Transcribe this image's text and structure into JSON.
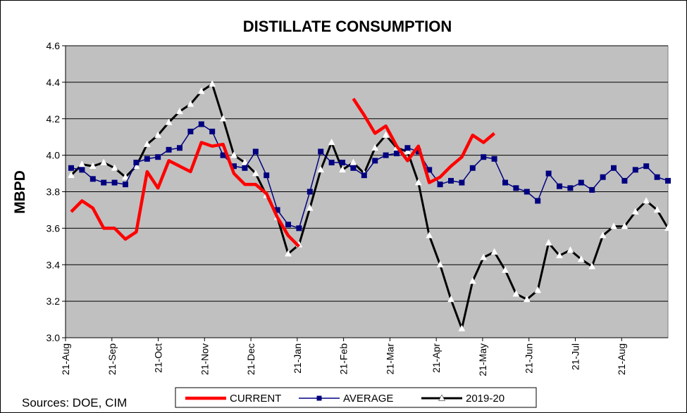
{
  "chart_data": {
    "type": "line",
    "title": "DISTILLATE CONSUMPTION",
    "ylabel": "MBPD",
    "xlabel": "",
    "ylim": [
      3.0,
      4.6
    ],
    "y_ticks": [
      "3.0",
      "3.2",
      "3.4",
      "3.6",
      "3.8",
      "4.0",
      "4.2",
      "4.4",
      "4.6"
    ],
    "x_ticks": [
      "21-Aug",
      "21-Sep",
      "21-Oct",
      "21-Nov",
      "21-Dec",
      "21-Jan",
      "21-Feb",
      "21-Mar",
      "21-Apr",
      "21-May",
      "21-Jun",
      "21-Jul",
      "21-Aug"
    ],
    "grid": true,
    "plot_background": "#c0c0c0",
    "legend_position": "bottom",
    "series": [
      {
        "name": "CURRENT",
        "color": "#ff0000",
        "marker": "none",
        "values": [
          3.69,
          3.75,
          3.71,
          3.6,
          3.6,
          3.54,
          3.58,
          3.91,
          3.82,
          3.97,
          3.94,
          3.91,
          4.07,
          4.05,
          4.06,
          3.9,
          3.84,
          3.84,
          3.79,
          3.66,
          3.56,
          3.5,
          null,
          null,
          null,
          null,
          4.31,
          4.22,
          4.12,
          4.16,
          4.05,
          3.97,
          4.05,
          3.85,
          3.88,
          3.94,
          3.99,
          4.11,
          4.07,
          4.12
        ]
      },
      {
        "name": "AVERAGE",
        "color": "#000080",
        "marker": "square",
        "values": [
          3.93,
          3.92,
          3.87,
          3.85,
          3.85,
          3.84,
          3.96,
          3.98,
          3.99,
          4.03,
          4.04,
          4.13,
          4.17,
          4.13,
          4.0,
          3.94,
          3.93,
          4.02,
          3.89,
          3.7,
          3.62,
          3.6,
          3.8,
          4.02,
          3.96,
          3.96,
          3.93,
          3.89,
          3.97,
          4.0,
          4.01,
          4.04,
          4.02,
          3.92,
          3.84,
          3.86,
          3.85,
          3.93,
          3.99,
          3.98,
          3.85,
          3.82,
          3.8,
          3.75,
          3.9,
          3.83,
          3.82,
          3.85,
          3.81,
          3.88,
          3.93,
          3.86,
          3.92,
          3.94,
          3.88,
          3.86
        ]
      },
      {
        "name": "2019-20",
        "color": "#000000",
        "marker": "triangle",
        "values": [
          3.89,
          3.95,
          3.94,
          3.96,
          3.93,
          3.88,
          3.94,
          4.06,
          4.11,
          4.18,
          4.24,
          4.28,
          4.35,
          4.39,
          4.2,
          4.0,
          3.96,
          3.9,
          3.78,
          3.66,
          3.46,
          3.51,
          3.71,
          3.92,
          4.07,
          3.92,
          3.96,
          3.9,
          4.04,
          4.11,
          4.04,
          4.02,
          3.85,
          3.56,
          3.4,
          3.21,
          3.05,
          3.31,
          3.44,
          3.47,
          3.37,
          3.24,
          3.21,
          3.26,
          3.52,
          3.45,
          3.48,
          3.43,
          3.39,
          3.56,
          3.61,
          3.61,
          3.69,
          3.75,
          3.7,
          3.6
        ]
      }
    ]
  },
  "footer": {
    "source_note": "Sources:  DOE, CIM"
  }
}
